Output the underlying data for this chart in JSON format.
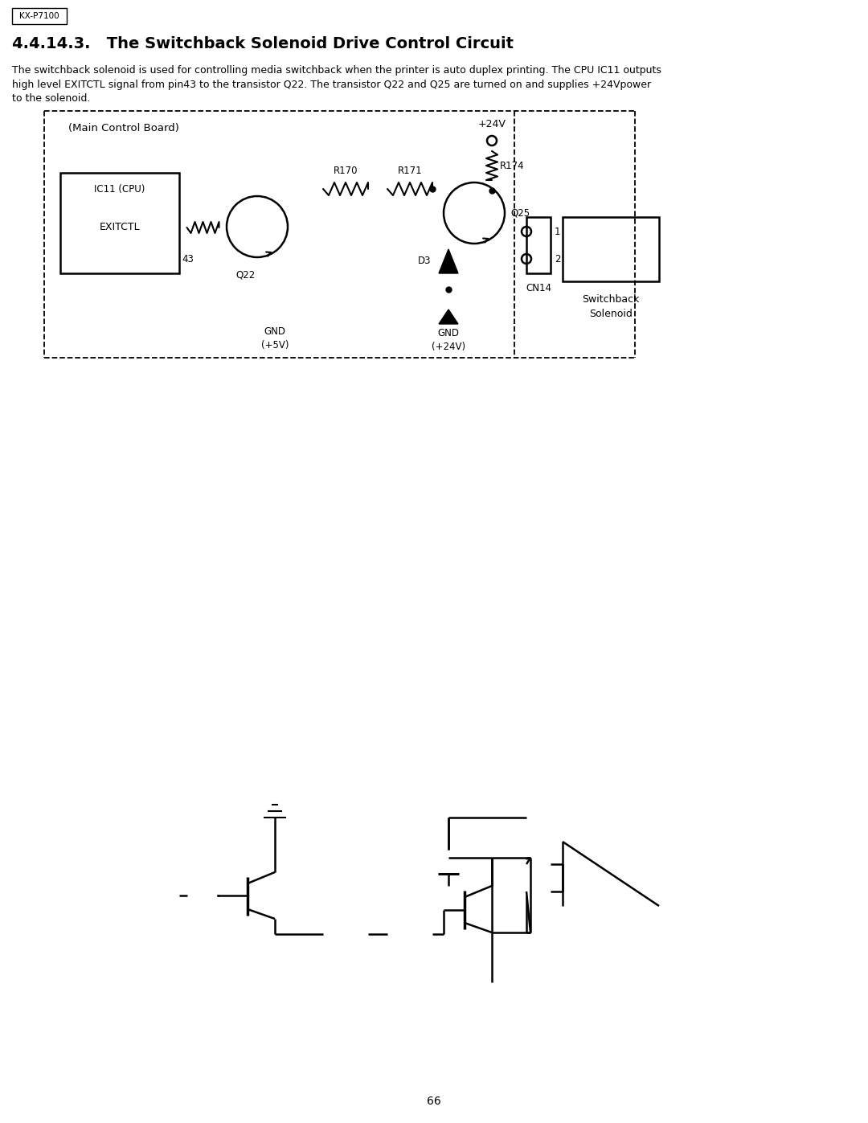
{
  "page_bg": "#ffffff",
  "text_color": "#000000",
  "badge_text": "KX-P7100",
  "title": "4.4.14.3.   The Switchback Solenoid Drive Control Circuit",
  "body_line1": "The switchback solenoid is used for controlling media switchback when the printer is auto duplex printing. The CPU IC11 outputs",
  "body_line2": "high level EXITCTL signal from pin43 to the transistor Q22. The transistor Q22 and Q25 are turned on and supplies +24Vpower",
  "body_line3": "to the solenoid.",
  "page_number": "66",
  "main_board_label": "(Main Control Board)",
  "ic11_label": "IC11 (CPU)",
  "exitctl_label": "EXITCTL",
  "pin43_label": "43",
  "q22_label": "Q22",
  "r170_label": "R170",
  "r171_label": "R171",
  "q25_label": "Q25",
  "r174_label": "R174",
  "v24_label": "+24V",
  "d3_label": "D3",
  "cn14_label": "CN14",
  "gnd1_label": "GND",
  "gnd1_sub": "(+5V)",
  "gnd2_label": "GND",
  "gnd2_sub": "(+24V)",
  "sw_label1": "Switchback",
  "sw_label2": "Solenoid",
  "pin1_label": "1",
  "pin2_label": "2"
}
